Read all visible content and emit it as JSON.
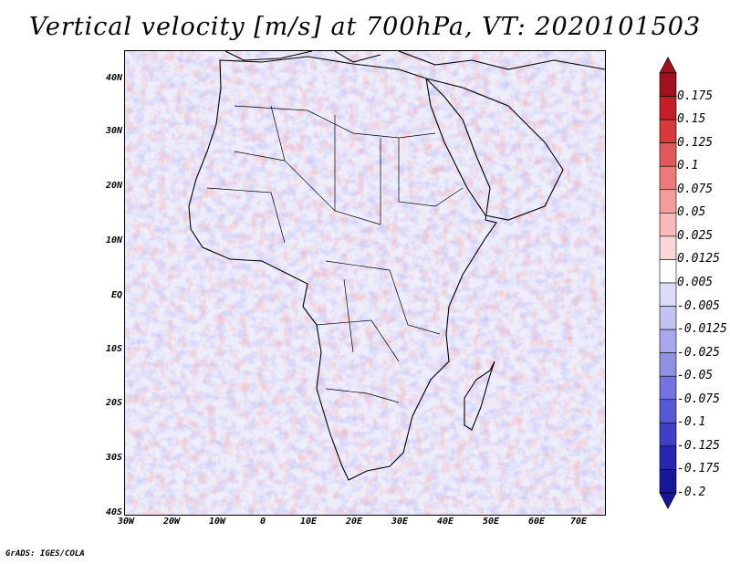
{
  "title": "Vertical velocity [m/s] at 700hPa, VT: 2020101503",
  "credit": "GrADS: IGES/COLA",
  "map": {
    "lat_labels": [
      "40N",
      "30N",
      "20N",
      "10N",
      "EQ",
      "10S",
      "20S",
      "30S",
      "40S"
    ],
    "lon_labels": [
      "30W",
      "20W",
      "10W",
      "0",
      "10E",
      "20E",
      "30E",
      "40E",
      "50E",
      "60E",
      "70E"
    ],
    "lat_range": [
      -40,
      45
    ],
    "lon_range": [
      -30,
      75
    ]
  },
  "colorbar": {
    "labels": [
      "0.175",
      "0.15",
      "0.125",
      "0.1",
      "0.075",
      "0.05",
      "0.025",
      "0.0125",
      "0.005",
      "-0.005",
      "-0.0125",
      "-0.025",
      "-0.05",
      "-0.075",
      "-0.1",
      "-0.125",
      "-0.175",
      "-0.2"
    ],
    "colors": [
      "#a1111d",
      "#c41f27",
      "#d8393a",
      "#e3595a",
      "#ed7a7a",
      "#f49b9b",
      "#f8b9b9",
      "#fbd6d6",
      "#ffffff",
      "#dcdcf7",
      "#c3c3f2",
      "#a8a8ec",
      "#8f8fe6",
      "#7373df",
      "#5858d5",
      "#3e3ec6",
      "#2626b0",
      "#17179a"
    ]
  }
}
